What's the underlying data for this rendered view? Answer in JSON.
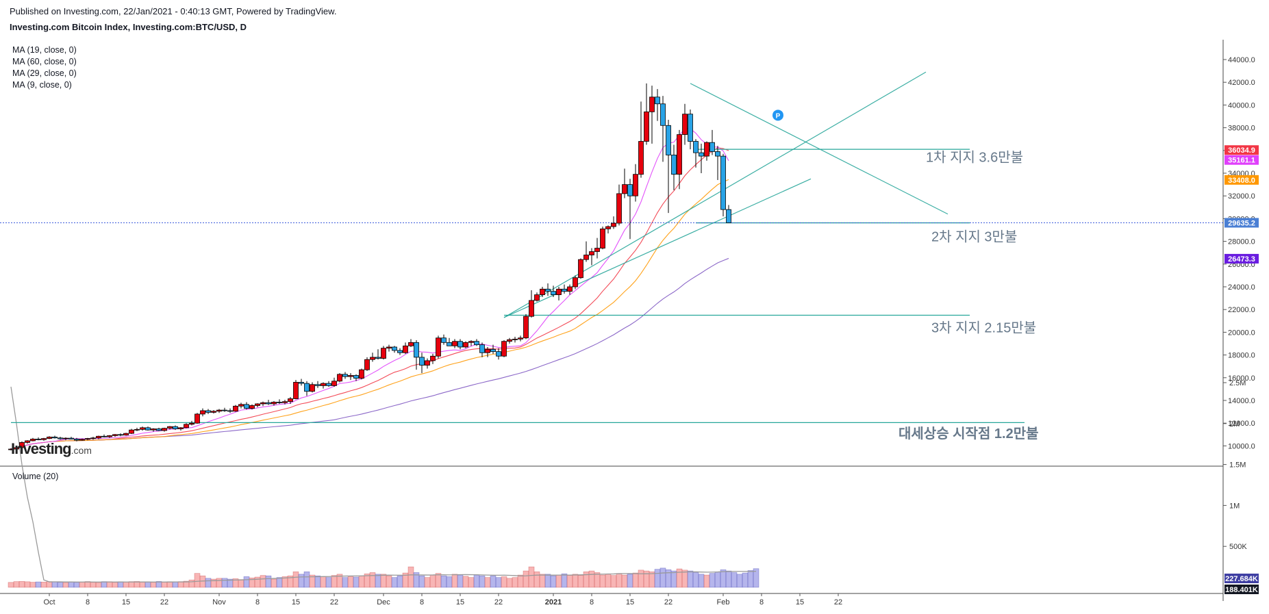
{
  "header": {
    "published": "Published on Investing.com, 22/Jan/2021 - 0:40:13 GMT, Powered by TradingView.",
    "instrument": "Investing.com Bitcoin Index, Investing.com:BTC/USD, D"
  },
  "logo": {
    "text": "Investing",
    "suffix": ".com"
  },
  "ma_legend": [
    "MA (19, close, 0)",
    "MA (60, close, 0)",
    "MA (29, close, 0)",
    "MA (9, close, 0)"
  ],
  "volume_legend": "Volume (20)",
  "chart_data": {
    "type": "candlestick",
    "timeframe": "D",
    "price_axis": {
      "ticks": [
        10000,
        12000,
        14000,
        16000,
        18000,
        20000,
        22000,
        24000,
        26000,
        28000,
        30000,
        32000,
        34000,
        36000,
        38000,
        40000,
        42000,
        44000
      ],
      "tick_labels": [
        "10000.0",
        "12000.0",
        "14000.0",
        "16000.0",
        "18000.0",
        "20000.0",
        "22000.0",
        "24000.0",
        "26000.0",
        "28000.0",
        "30000.0",
        "32000.0",
        "34000.0",
        "36000.0",
        "38000.0",
        "40000.0",
        "42000.0",
        "44000.0"
      ]
    },
    "volume_axis": {
      "ticks": [
        500000,
        1000000,
        1500000,
        2000000,
        2500000
      ],
      "tick_labels": [
        "500K",
        "1M",
        "1.5M",
        "2M",
        "2.5M"
      ]
    },
    "time_axis": {
      "labels": [
        "Oct",
        "8",
        "15",
        "22",
        "Nov",
        "8",
        "15",
        "22",
        "Dec",
        "8",
        "15",
        "22",
        "2021",
        "8",
        "15",
        "22",
        "Feb",
        "8",
        "15",
        "22"
      ],
      "days": [
        7,
        14,
        21,
        28,
        38,
        45,
        52,
        59,
        68,
        75,
        82,
        89,
        99,
        106,
        113,
        120,
        130,
        137,
        144,
        151
      ]
    },
    "candles": [
      [
        9700,
        9800,
        9600,
        9720
      ],
      [
        9720,
        9900,
        9650,
        9850
      ],
      [
        9850,
        10400,
        9800,
        10300
      ],
      [
        10300,
        10500,
        10200,
        10450
      ],
      [
        10450,
        10700,
        10400,
        10600
      ],
      [
        10600,
        10750,
        10500,
        10550
      ],
      [
        10550,
        10700,
        10450,
        10650
      ],
      [
        10650,
        10850,
        10600,
        10780
      ],
      [
        10780,
        10900,
        10650,
        10700
      ],
      [
        10700,
        10800,
        10550,
        10620
      ],
      [
        10620,
        10750,
        10500,
        10680
      ],
      [
        10680,
        10800,
        10580,
        10600
      ],
      [
        10600,
        10700,
        10400,
        10500
      ],
      [
        10500,
        10650,
        10450,
        10580
      ],
      [
        10580,
        10700,
        10500,
        10650
      ],
      [
        10650,
        10800,
        10550,
        10700
      ],
      [
        10700,
        10900,
        10600,
        10850
      ],
      [
        10850,
        11000,
        10750,
        10800
      ],
      [
        10800,
        10950,
        10700,
        10900
      ],
      [
        10900,
        11050,
        10800,
        11000
      ],
      [
        11000,
        11100,
        10850,
        10950
      ],
      [
        10950,
        11150,
        10900,
        11100
      ],
      [
        11100,
        11500,
        11050,
        11400
      ],
      [
        11400,
        11600,
        11300,
        11450
      ],
      [
        11450,
        11700,
        11350,
        11600
      ],
      [
        11600,
        11700,
        11350,
        11400
      ],
      [
        11400,
        11550,
        11250,
        11500
      ],
      [
        11500,
        11600,
        11300,
        11350
      ],
      [
        11350,
        11600,
        11250,
        11550
      ],
      [
        11550,
        11750,
        11450,
        11700
      ],
      [
        11700,
        11800,
        11400,
        11500
      ],
      [
        11500,
        11650,
        11350,
        11600
      ],
      [
        11600,
        12000,
        11550,
        11900
      ],
      [
        11900,
        12200,
        11800,
        12000
      ],
      [
        12000,
        12900,
        11950,
        12800
      ],
      [
        12800,
        13300,
        12600,
        13100
      ],
      [
        13100,
        13250,
        12800,
        12950
      ],
      [
        12950,
        13150,
        12850,
        13050
      ],
      [
        13050,
        13250,
        12900,
        13150
      ],
      [
        13150,
        13350,
        13000,
        13100
      ],
      [
        13100,
        13300,
        12900,
        13050
      ],
      [
        13050,
        13600,
        13000,
        13500
      ],
      [
        13500,
        13800,
        13300,
        13650
      ],
      [
        13650,
        13850,
        13200,
        13300
      ],
      [
        13300,
        13650,
        13200,
        13550
      ],
      [
        13550,
        13750,
        13400,
        13700
      ],
      [
        13700,
        13900,
        13500,
        13800
      ],
      [
        13800,
        14050,
        13600,
        13700
      ],
      [
        13700,
        13950,
        13550,
        13850
      ],
      [
        13850,
        14100,
        13700,
        13800
      ],
      [
        13800,
        14050,
        13650,
        13900
      ],
      [
        13900,
        14300,
        13700,
        14150
      ],
      [
        14150,
        15800,
        14100,
        15600
      ],
      [
        15600,
        15900,
        15300,
        15500
      ],
      [
        15500,
        15700,
        14400,
        14800
      ],
      [
        14800,
        15600,
        14700,
        15400
      ],
      [
        15400,
        15700,
        15100,
        15300
      ],
      [
        15300,
        15600,
        15050,
        15500
      ],
      [
        15500,
        15700,
        15200,
        15300
      ],
      [
        15300,
        16000,
        15200,
        15700
      ],
      [
        15700,
        16400,
        15600,
        16300
      ],
      [
        16300,
        16500,
        15900,
        16100
      ],
      [
        16100,
        16400,
        15800,
        16200
      ],
      [
        16200,
        16300,
        15700,
        15950
      ],
      [
        15950,
        16800,
        15850,
        16700
      ],
      [
        16700,
        17800,
        16600,
        17600
      ],
      [
        17600,
        18200,
        17400,
        17800
      ],
      [
        17800,
        18500,
        17600,
        17700
      ],
      [
        17700,
        18800,
        17600,
        18600
      ],
      [
        18600,
        18900,
        18300,
        18700
      ],
      [
        18700,
        18800,
        18200,
        18400
      ],
      [
        18400,
        18600,
        18000,
        18200
      ],
      [
        18200,
        19100,
        18100,
        18800
      ],
      [
        18800,
        19400,
        18700,
        19100
      ],
      [
        19100,
        19300,
        16700,
        17800
      ],
      [
        17800,
        18200,
        16400,
        17100
      ],
      [
        17100,
        17700,
        16800,
        17500
      ],
      [
        17500,
        18100,
        17200,
        17900
      ],
      [
        17900,
        19700,
        17700,
        19500
      ],
      [
        19500,
        19800,
        18900,
        19100
      ],
      [
        19100,
        19500,
        18800,
        18800
      ],
      [
        18800,
        19400,
        18600,
        19200
      ],
      [
        19200,
        19400,
        18500,
        18700
      ],
      [
        18700,
        19200,
        18600,
        19100
      ],
      [
        19100,
        19300,
        18800,
        19200
      ],
      [
        19200,
        19400,
        18800,
        18900
      ],
      [
        18900,
        19100,
        17800,
        18200
      ],
      [
        18200,
        18700,
        17800,
        18500
      ],
      [
        18500,
        18900,
        18100,
        18300
      ],
      [
        18300,
        18600,
        17600,
        17900
      ],
      [
        17900,
        19300,
        17800,
        19200
      ],
      [
        19200,
        19500,
        19000,
        19350
      ],
      [
        19350,
        19600,
        19100,
        19400
      ],
      [
        19400,
        19700,
        19200,
        19500
      ],
      [
        19500,
        21600,
        19400,
        21400
      ],
      [
        21400,
        23700,
        21300,
        22800
      ],
      [
        22800,
        23500,
        22700,
        23300
      ],
      [
        23300,
        24000,
        23100,
        23800
      ],
      [
        23800,
        24300,
        23200,
        23600
      ],
      [
        23600,
        24100,
        23100,
        23300
      ],
      [
        23300,
        24000,
        22800,
        23800
      ],
      [
        23800,
        24200,
        23400,
        23600
      ],
      [
        23600,
        24200,
        23300,
        24000
      ],
      [
        24000,
        25000,
        23800,
        24800
      ],
      [
        24800,
        26500,
        24700,
        26400
      ],
      [
        26400,
        28000,
        26200,
        26800
      ],
      [
        26800,
        27400,
        25900,
        27100
      ],
      [
        27100,
        28300,
        26500,
        27400
      ],
      [
        27400,
        29300,
        27300,
        29100
      ],
      [
        29100,
        29400,
        28700,
        29300
      ],
      [
        29300,
        30200,
        29100,
        29600
      ],
      [
        29600,
        33000,
        29400,
        32200
      ],
      [
        32200,
        34400,
        31800,
        33000
      ],
      [
        33000,
        33500,
        28200,
        32000
      ],
      [
        32000,
        34800,
        31500,
        33900
      ],
      [
        33900,
        40300,
        33600,
        36800
      ],
      [
        36800,
        41900,
        36500,
        39400
      ],
      [
        39400,
        41700,
        36600,
        40700
      ],
      [
        40700,
        41400,
        38600,
        40100
      ],
      [
        40100,
        40800,
        35000,
        38200
      ],
      [
        38200,
        38700,
        30500,
        35600
      ],
      [
        35600,
        36500,
        32500,
        33900
      ],
      [
        33900,
        37800,
        32600,
        37400
      ],
      [
        37400,
        40100,
        36500,
        39200
      ],
      [
        39200,
        39600,
        36100,
        36800
      ],
      [
        36800,
        37000,
        34500,
        35800
      ],
      [
        35800,
        36600,
        34000,
        35500
      ],
      [
        35500,
        36800,
        35100,
        36700
      ],
      [
        36700,
        37800,
        35600,
        35900
      ],
      [
        35900,
        36400,
        33400,
        35500
      ],
      [
        35500,
        35700,
        30200,
        30800
      ],
      [
        30800,
        31200,
        29800,
        29635
      ]
    ],
    "volume": {
      "values": [
        60000,
        70000,
        72000,
        68000,
        62000,
        66000,
        64000,
        70000,
        69000,
        61000,
        58000,
        65000,
        60000,
        63000,
        71000,
        60000,
        58000,
        70000,
        69000,
        60000,
        68000,
        65000,
        70000,
        72000,
        64000,
        66000,
        60000,
        72000,
        63000,
        69000,
        66000,
        70000,
        75000,
        90000,
        170000,
        140000,
        110000,
        100000,
        110000,
        110000,
        100000,
        105000,
        95000,
        130000,
        115000,
        125000,
        145000,
        140000,
        100000,
        120000,
        130000,
        140000,
        190000,
        160000,
        190000,
        150000,
        140000,
        130000,
        120000,
        145000,
        160000,
        120000,
        130000,
        125000,
        140000,
        165000,
        180000,
        160000,
        160000,
        140000,
        120000,
        140000,
        175000,
        250000,
        180000,
        140000,
        120000,
        150000,
        170000,
        140000,
        130000,
        160000,
        150000,
        135000,
        120000,
        150000,
        140000,
        120000,
        140000,
        120000,
        130000,
        110000,
        120000,
        150000,
        200000,
        250000,
        190000,
        160000,
        160000,
        140000,
        150000,
        165000,
        145000,
        160000,
        145000,
        190000,
        200000,
        180000,
        150000,
        160000,
        145000,
        170000,
        150000,
        160000,
        175000,
        210000,
        200000,
        190000,
        220000,
        235000,
        215000,
        200000,
        225000,
        210000,
        200000,
        180000,
        160000,
        150000,
        170000,
        190000,
        215000,
        200000,
        180000,
        160000,
        175000,
        205000,
        227684
      ],
      "ma_start": [
        2450000,
        2000000,
        1500000,
        1100000,
        800000,
        430000,
        90000
      ]
    },
    "moving_averages": [
      {
        "name": "MA (19, close, 0)",
        "color": "#f23645",
        "current_label": "36034.9"
      },
      {
        "name": "MA (60, close, 0)",
        "color": "#7e57c2",
        "current_label": "26473.3"
      },
      {
        "name": "MA (29, close, 0)",
        "color": "#ff9800",
        "current_label": "33408.0"
      },
      {
        "name": "MA (9, close, 0)",
        "color": "#e040fb",
        "current_label": "35161.1"
      }
    ],
    "price_labels": [
      {
        "text": "36034.9",
        "value": 36034.9,
        "bg": "#f23645"
      },
      {
        "text": "35161.1",
        "value": 35161.1,
        "bg": "#e040fb"
      },
      {
        "text": "33408.0",
        "value": 33408.0,
        "bg": "#ff9800"
      },
      {
        "text": "29635.2",
        "value": 29635.2,
        "bg": "#4a7fd4"
      },
      {
        "text": "26473.3",
        "value": 26473.3,
        "bg": "#6a1de0"
      }
    ],
    "volume_labels": [
      {
        "text": "227.684K",
        "value": 227684,
        "bg": "#3f3fa3"
      },
      {
        "text": "188.401K",
        "value": 188401,
        "bg": "#131722"
      }
    ],
    "last_price": 29635.2,
    "support_lines": [
      {
        "price": 36100,
        "d1": 125,
        "d2": 175
      },
      {
        "price": 29630,
        "d1": 125,
        "d2": 175
      },
      {
        "price": 21500,
        "d1": 90,
        "d2": 175
      },
      {
        "price": 12050,
        "d1": 0,
        "d2": 185
      }
    ],
    "trend_lines": [
      {
        "d1": 124,
        "p1": 41900,
        "d2": 171,
        "p2": 30400
      },
      {
        "d1": 90,
        "p1": 21300,
        "d2": 167,
        "p2": 42900
      },
      {
        "d1": 90,
        "p1": 21300,
        "d2": 146,
        "p2": 33500
      }
    ],
    "annotations": [
      {
        "text": "1차 지지 3.6만불",
        "d": 167,
        "price": 35000,
        "bold": false
      },
      {
        "text": "2차 지지 3만불",
        "d": 168,
        "price": 28000,
        "bold": false
      },
      {
        "text": "3차 지지 2.15만불",
        "d": 168,
        "price": 20000,
        "bold": false
      },
      {
        "text": "대세상승 시작점 1.2만불",
        "d": 162,
        "price": 10700,
        "bold": true
      }
    ],
    "marker": {
      "text": "P",
      "d": 140,
      "price": 39100
    }
  }
}
